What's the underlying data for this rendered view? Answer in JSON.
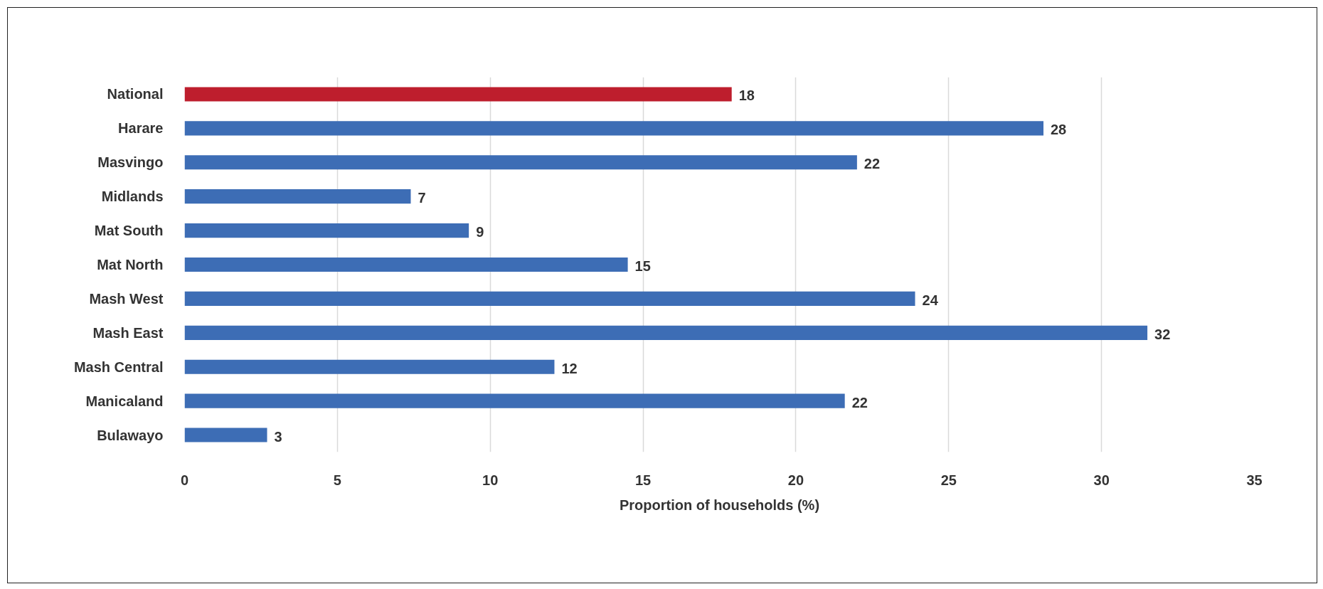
{
  "chart_data": {
    "type": "bar",
    "orientation": "horizontal",
    "xlabel": "Proportion of households (%)",
    "categories": [
      "National",
      "Harare",
      "Masvingo",
      "Midlands",
      "Mat South",
      "Mat North",
      "Mash West",
      "Mash East",
      "Mash Central",
      "Manicaland",
      "Bulawayo"
    ],
    "values": [
      17.9,
      28.1,
      22.0,
      7.4,
      9.3,
      14.5,
      23.9,
      31.5,
      12.1,
      21.6,
      2.7
    ],
    "colors": [
      "#be1e2d",
      "#3d6db5",
      "#3d6db5",
      "#3d6db5",
      "#3d6db5",
      "#3d6db5",
      "#3d6db5",
      "#3d6db5",
      "#3d6db5",
      "#3d6db5",
      "#3d6db5"
    ],
    "value_labels": [
      "18",
      "28",
      "22",
      "7",
      "9",
      "15",
      "24",
      "32",
      "12",
      "22",
      "3"
    ],
    "xlim": [
      0,
      35
    ],
    "xticks": [
      0,
      5,
      10,
      15,
      20,
      25,
      30,
      35
    ],
    "grid": "x"
  }
}
